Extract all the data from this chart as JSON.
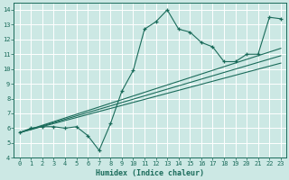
{
  "xlabel": "Humidex (Indice chaleur)",
  "xlim": [
    -0.5,
    23.5
  ],
  "ylim": [
    4,
    14.5
  ],
  "xticks": [
    0,
    1,
    2,
    3,
    4,
    5,
    6,
    7,
    8,
    9,
    10,
    11,
    12,
    13,
    14,
    15,
    16,
    17,
    18,
    19,
    20,
    21,
    22,
    23
  ],
  "yticks": [
    4,
    5,
    6,
    7,
    8,
    9,
    10,
    11,
    12,
    13,
    14
  ],
  "bg_color": "#cce8e4",
  "line_color": "#1a6b5a",
  "data_x": [
    0,
    1,
    2,
    3,
    4,
    5,
    6,
    7,
    8,
    9,
    10,
    11,
    12,
    13,
    14,
    15,
    16,
    17,
    18,
    19,
    20,
    21,
    22,
    23
  ],
  "data_y": [
    5.7,
    6.0,
    6.1,
    6.1,
    6.0,
    6.1,
    5.5,
    4.5,
    6.3,
    8.5,
    9.9,
    12.7,
    13.2,
    14.0,
    12.7,
    12.5,
    11.8,
    11.5,
    10.5,
    10.5,
    11.0,
    11.0,
    13.5,
    13.4
  ],
  "trend1_x": [
    0,
    23
  ],
  "trend1_y": [
    5.7,
    10.4
  ],
  "trend2_x": [
    0,
    23
  ],
  "trend2_y": [
    5.7,
    10.9
  ],
  "trend3_x": [
    0,
    23
  ],
  "trend3_y": [
    5.7,
    11.4
  ]
}
